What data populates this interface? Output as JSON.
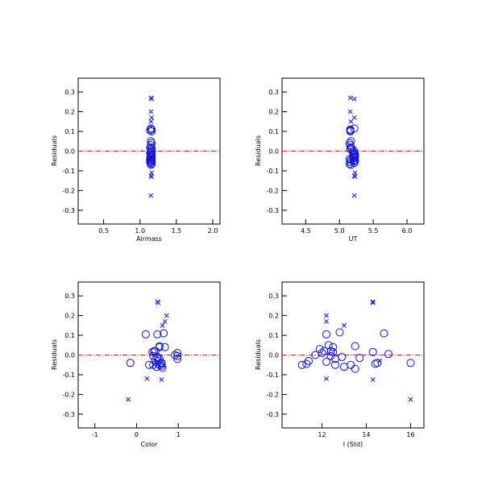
{
  "figure": {
    "title": ""
  },
  "chart_data": [
    {
      "type": "scatter",
      "id": "airmass",
      "xlabel": "Airmass",
      "ylabel": "Residuals",
      "xlim": [
        0.15,
        2.1
      ],
      "ylim": [
        -0.37,
        0.37
      ],
      "xticks": [
        0.5,
        1.0,
        1.5,
        2.0
      ],
      "xticklabels": [
        "0.5",
        "1.0",
        "1.5",
        "2.0"
      ],
      "yticks": [
        -0.3,
        -0.2,
        -0.1,
        0.0,
        0.1,
        0.2,
        0.3
      ],
      "yticklabels": [
        "-0.3",
        "-0.2",
        "-0.1",
        "0.0",
        "0.1",
        "0.2",
        "0.3"
      ],
      "zero_line": true,
      "series": [
        {
          "marker": "circle",
          "x": [
            1.15,
            1.16,
            1.14,
            1.16,
            1.15,
            1.16,
            1.15,
            1.14,
            1.16,
            1.15,
            1.16,
            1.15,
            1.14,
            1.16,
            1.15,
            1.16,
            1.15,
            1.14,
            1.16,
            1.15,
            1.15,
            1.16,
            1.14,
            1.15,
            1.16,
            1.15,
            1.14,
            1.16,
            1.15
          ],
          "y": [
            0.115,
            0.11,
            0.105,
            0.1,
            0.05,
            0.04,
            0.03,
            0.02,
            0.015,
            0.01,
            0.0,
            -0.005,
            -0.01,
            -0.015,
            -0.02,
            -0.025,
            -0.03,
            -0.035,
            -0.04,
            -0.045,
            -0.05,
            -0.05,
            -0.055,
            -0.06,
            -0.065,
            -0.07,
            -0.045,
            -0.03,
            -0.02
          ]
        },
        {
          "marker": "x",
          "x": [
            1.15,
            1.16,
            1.15,
            1.16,
            1.15,
            1.16,
            1.15,
            1.16,
            1.15
          ],
          "y": [
            0.27,
            0.265,
            0.2,
            0.17,
            0.15,
            -0.11,
            -0.125,
            -0.13,
            -0.225
          ]
        }
      ]
    },
    {
      "type": "scatter",
      "id": "ut",
      "xlabel": "UT",
      "ylabel": "Residuals",
      "xlim": [
        4.15,
        6.25
      ],
      "ylim": [
        -0.37,
        0.37
      ],
      "xticks": [
        4.5,
        5.0,
        5.5,
        6.0
      ],
      "xticklabels": [
        "4.5",
        "5.0",
        "5.5",
        "6.0"
      ],
      "yticks": [
        -0.3,
        -0.2,
        -0.1,
        0.0,
        0.1,
        0.2,
        0.3
      ],
      "yticklabels": [
        "-0.3",
        "-0.2",
        "-0.1",
        "0.0",
        "0.1",
        "0.2",
        "0.3"
      ],
      "zero_line": true,
      "series": [
        {
          "marker": "circle",
          "x": [
            5.22,
            5.16,
            5.16,
            5.16,
            5.17,
            5.15,
            5.16,
            5.17,
            5.18,
            5.16,
            5.22,
            5.2,
            5.22,
            5.23,
            5.21,
            5.23,
            5.2,
            5.22,
            5.15,
            5.17,
            5.22,
            5.23,
            5.16,
            5.22,
            5.15,
            5.17,
            5.21,
            5.23,
            5.22
          ],
          "y": [
            0.115,
            0.11,
            0.105,
            0.1,
            0.05,
            0.04,
            0.03,
            0.02,
            0.015,
            0.01,
            0.0,
            -0.005,
            -0.01,
            -0.015,
            -0.02,
            -0.025,
            -0.03,
            -0.035,
            -0.04,
            -0.045,
            -0.05,
            -0.05,
            -0.055,
            -0.06,
            -0.065,
            -0.07,
            -0.045,
            -0.03,
            -0.02
          ]
        },
        {
          "marker": "x",
          "x": [
            5.16,
            5.22,
            5.16,
            5.22,
            5.17,
            5.23,
            5.22,
            5.23,
            5.22
          ],
          "y": [
            0.27,
            0.265,
            0.2,
            0.17,
            0.15,
            -0.11,
            -0.125,
            -0.13,
            -0.225
          ]
        }
      ]
    },
    {
      "type": "scatter",
      "id": "color",
      "xlabel": "Color",
      "ylabel": "Residuals",
      "xlim": [
        -1.4,
        2.0
      ],
      "ylim": [
        -0.37,
        0.37
      ],
      "xticks": [
        -1,
        0,
        1
      ],
      "xticklabels": [
        "-1",
        "0",
        "1"
      ],
      "yticks": [
        -0.3,
        -0.2,
        -0.1,
        0.0,
        0.1,
        0.2,
        0.3
      ],
      "yticklabels": [
        "-0.3",
        "-0.2",
        "-0.1",
        "0.0",
        "0.1",
        "0.2",
        "0.3"
      ],
      "zero_line": true,
      "series": [
        {
          "marker": "circle",
          "x": [
            0.22,
            0.5,
            0.65,
            0.55,
            0.55,
            0.68,
            0.42,
            0.38,
            0.45,
            0.98,
            0.92,
            0.98,
            0.5,
            0.55,
            0.45,
            0.52,
            0.6,
            0.4,
            -0.15,
            0.6,
            0.3,
            0.55,
            0.6,
            0.48,
            0.62,
            0.4,
            0.55,
            0.5,
            0.98
          ],
          "y": [
            0.105,
            0.105,
            0.11,
            0.04,
            0.045,
            0.04,
            0.02,
            0.015,
            0.02,
            0.01,
            0.0,
            -0.005,
            -0.015,
            -0.02,
            -0.025,
            -0.03,
            -0.04,
            -0.05,
            -0.04,
            -0.045,
            -0.05,
            -0.05,
            -0.055,
            -0.06,
            -0.065,
            -0.005,
            -0.02,
            -0.01,
            -0.02
          ]
        },
        {
          "marker": "x",
          "x": [
            0.5,
            0.52,
            0.72,
            0.68,
            0.62,
            0.25,
            0.6,
            0.42,
            -0.2
          ],
          "y": [
            0.27,
            0.265,
            0.2,
            0.17,
            0.15,
            -0.12,
            -0.125,
            -0.05,
            -0.225
          ]
        }
      ]
    },
    {
      "type": "scatter",
      "id": "i-std",
      "xlabel": "I (Std)",
      "ylabel": "Residuals",
      "xlim": [
        10.2,
        16.6
      ],
      "ylim": [
        -0.37,
        0.37
      ],
      "xticks": [
        12,
        14,
        16
      ],
      "xticklabels": [
        "12",
        "14",
        "16"
      ],
      "yticks": [
        -0.3,
        -0.2,
        -0.1,
        0.0,
        0.1,
        0.2,
        0.3
      ],
      "yticklabels": [
        "-0.3",
        "-0.2",
        "-0.1",
        "0.0",
        "0.1",
        "0.2",
        "0.3"
      ],
      "zero_line": true,
      "series": [
        {
          "marker": "circle",
          "x": [
            12.2,
            12.8,
            14.8,
            12.3,
            13.5,
            12.5,
            11.9,
            12.1,
            12.5,
            14.3,
            15.0,
            11.7,
            12.4,
            12.9,
            13.7,
            12.6,
            11.1,
            11.4,
            12.2,
            14.5,
            11.3,
            12.6,
            13.3,
            13.5,
            14.4,
            12.0,
            12.4,
            13.0,
            16.0
          ],
          "y": [
            0.105,
            0.115,
            0.11,
            0.05,
            0.045,
            0.04,
            0.03,
            0.02,
            0.015,
            0.015,
            0.005,
            0.0,
            -0.005,
            -0.01,
            -0.015,
            -0.02,
            -0.05,
            -0.03,
            -0.035,
            -0.04,
            -0.045,
            -0.05,
            -0.05,
            -0.07,
            -0.045,
            0.01,
            0.02,
            -0.06,
            -0.04
          ]
        },
        {
          "marker": "x",
          "x": [
            14.3,
            14.3,
            12.2,
            12.2,
            13.0,
            12.2,
            14.3,
            14.6,
            16.0
          ],
          "y": [
            0.27,
            0.265,
            0.2,
            0.17,
            0.15,
            -0.12,
            -0.125,
            -0.03,
            -0.225
          ]
        }
      ]
    }
  ],
  "style": {
    "marker_color": "#1010dd",
    "zero_line_color": "#dd1010",
    "axis_color": "#000000",
    "background": "#ffffff"
  }
}
